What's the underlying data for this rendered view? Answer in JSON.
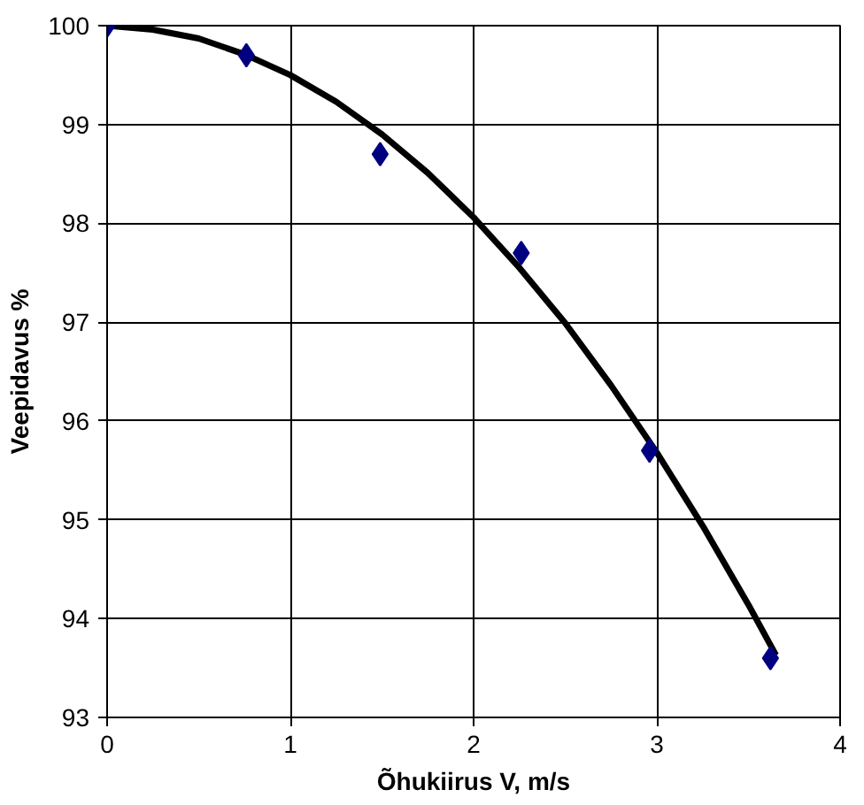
{
  "chart_data": {
    "type": "scatter",
    "xlabel": "Õhukiirus V, m/s",
    "ylabel": "Veepidavus %",
    "xlim": [
      0,
      4
    ],
    "ylim": [
      93,
      100
    ],
    "xticks": [
      0,
      1,
      2,
      3,
      4
    ],
    "yticks": [
      93,
      94,
      95,
      96,
      97,
      98,
      99,
      100
    ],
    "grid": true,
    "series": [
      {
        "color": "#000080",
        "marker": "diamond",
        "x": [
          0,
          0.76,
          1.49,
          2.26,
          2.96,
          3.62
        ],
        "values": [
          100,
          99.7,
          98.7,
          97.7,
          95.7,
          93.6
        ]
      },
      {
        "type": "line",
        "color": "#000000",
        "marker": "none",
        "line_style": "solid",
        "x": [
          0,
          0.25,
          0.5,
          0.75,
          1,
          1.25,
          1.5,
          1.75,
          2,
          2.25,
          2.5,
          2.75,
          3,
          3.25,
          3.5,
          3.65
        ],
        "values": [
          100,
          99.96,
          99.87,
          99.71,
          99.5,
          99.23,
          98.9,
          98.51,
          98.06,
          97.55,
          96.99,
          96.36,
          95.68,
          94.94,
          94.14,
          93.63
        ]
      }
    ]
  }
}
